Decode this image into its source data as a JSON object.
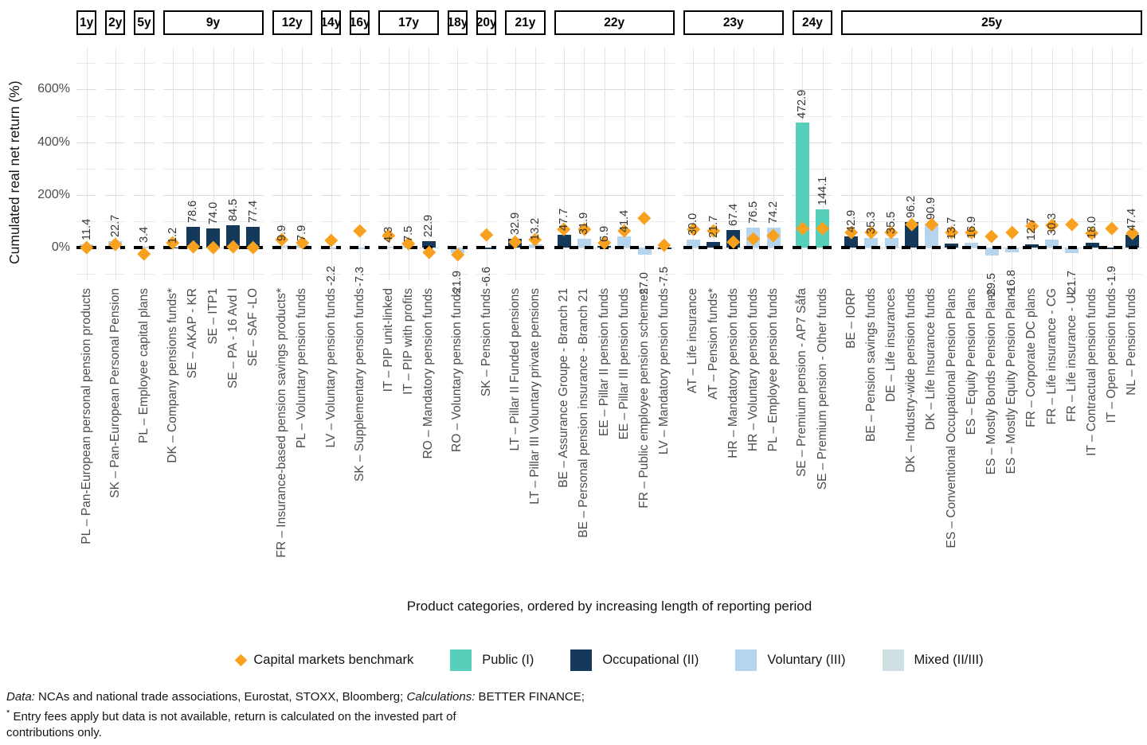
{
  "y_axis": {
    "title": "Cumulated real net return (%)",
    "ticks": [
      {
        "label": "600%",
        "value": 600
      },
      {
        "label": "400%",
        "value": 400
      },
      {
        "label": "200%",
        "value": 200
      },
      {
        "label": "0%",
        "value": 0
      }
    ]
  },
  "x_axis": {
    "title": "Product categories, ordered by increasing length of reporting period"
  },
  "legend": [
    {
      "label": "Capital markets benchmark",
      "type": "diamond",
      "color": "#F8A11E"
    },
    {
      "label": "Public (I)",
      "type": "swatch",
      "color": "#56CFBB"
    },
    {
      "label": "Occupational (II)",
      "type": "swatch",
      "color": "#15395B"
    },
    {
      "label": "Voluntary (III)",
      "type": "swatch",
      "color": "#B5D4ED"
    },
    {
      "label": "Mixed (II/III)",
      "type": "swatch",
      "color": "#CFE0E3"
    }
  ],
  "footnote": {
    "data_label": "Data:",
    "data_text": " NCAs and national trade associations, Eurostat, STOXX, Bloomberg; ",
    "calc_label": "Calculations:",
    "calc_text": " BETTER FINANCE;",
    "star": "*",
    "note_line1": " Entry fees apply but data is not available, return is calculated on the invested part of",
    "note_line2": "contributions only."
  },
  "chart_data": {
    "type": "bar",
    "title": "",
    "xlabel": "Product categories, ordered by increasing length of reporting period",
    "ylabel": "Cumulated real net return (%)",
    "ylim": [
      -120,
      760
    ],
    "yticks": [
      0,
      200,
      400,
      600
    ],
    "grid": true,
    "legend_position": "bottom",
    "colors": {
      "public": "#56CFBB",
      "occupational": "#15395B",
      "voluntary": "#B5D4ED",
      "mixed": "#CFE0E3",
      "benchmark": "#F8A11E"
    },
    "benchmark_note": "orange diamonds = Capital markets benchmark (values estimated from pixel positions, not labeled in chart)",
    "facets": [
      {
        "period": "1y",
        "items": [
          {
            "label": "PL – Pan-European personal pension products",
            "value": 11.4,
            "category": "voluntary",
            "benchmark": 1
          }
        ]
      },
      {
        "period": "2y",
        "items": [
          {
            "label": "SK – Pan-European Personal Pension",
            "value": 22.7,
            "category": "voluntary",
            "benchmark": 13
          }
        ]
      },
      {
        "period": "5y",
        "items": [
          {
            "label": "PL – Employee capital plans",
            "value": 3.4,
            "category": "voluntary",
            "benchmark": -24
          }
        ]
      },
      {
        "period": "9y",
        "items": [
          {
            "label": "DK – Company pensions funds*",
            "value": 1.2,
            "category": "occupational",
            "benchmark": 19
          },
          {
            "label": "SE – AKAP - KR",
            "value": 78.6,
            "category": "occupational",
            "benchmark": 3
          },
          {
            "label": "SE – ITP1",
            "value": 74.0,
            "category": "occupational",
            "benchmark": 1
          },
          {
            "label": "SE – PA - 16 Avd I",
            "value": 84.5,
            "category": "occupational",
            "benchmark": 5
          },
          {
            "label": "SE – SAF -LO",
            "value": 77.4,
            "category": "occupational",
            "benchmark": 2
          }
        ]
      },
      {
        "period": "12y",
        "items": [
          {
            "label": "FR – Insurance-based pension savings products*",
            "value": 9.9,
            "category": "mixed",
            "benchmark": 31
          },
          {
            "label": "PL – Voluntary pension funds",
            "value": 7.9,
            "category": "voluntary",
            "benchmark": 19
          }
        ]
      },
      {
        "period": "14y",
        "items": [
          {
            "label": "LV – Voluntary pension funds",
            "value": -2.2,
            "category": "voluntary",
            "benchmark": 27
          }
        ]
      },
      {
        "period": "16y",
        "items": [
          {
            "label": "SK – Supplementary pension funds",
            "value": -7.3,
            "category": "voluntary",
            "benchmark": 64
          }
        ]
      },
      {
        "period": "17y",
        "items": [
          {
            "label": "IT – PIP unit-linked",
            "value": 4.3,
            "category": "voluntary",
            "benchmark": 45
          },
          {
            "label": "IT – PIP with profits",
            "value": 7.5,
            "category": "voluntary",
            "benchmark": 17
          },
          {
            "label": "RO – Mandatory pension funds",
            "value": 22.9,
            "category": "occupational",
            "benchmark": -18
          }
        ]
      },
      {
        "period": "18y",
        "items": [
          {
            "label": "RO – Voluntary pension funds",
            "value": -21.9,
            "category": "voluntary",
            "benchmark": -26
          }
        ]
      },
      {
        "period": "20y",
        "items": [
          {
            "label": "SK – Pension funds",
            "value": -6.6,
            "category": "occupational",
            "benchmark": 49
          }
        ]
      },
      {
        "period": "21y",
        "items": [
          {
            "label": "LT – Pillar II Funded pensions",
            "value": 32.9,
            "category": "occupational",
            "benchmark": 22
          },
          {
            "label": "LT – Pillar III Voluntary private pensions",
            "value": 13.2,
            "category": "voluntary",
            "benchmark": 30
          }
        ]
      },
      {
        "period": "22y",
        "items": [
          {
            "label": "BE – Assurance Groupe - Branch 21",
            "value": 47.7,
            "category": "occupational",
            "benchmark": 69
          },
          {
            "label": "BE – Personal pension insurance - Branch 21",
            "value": 31.9,
            "category": "voluntary",
            "benchmark": 69
          },
          {
            "label": "EE – Pillar II pension funds",
            "value": 6.9,
            "category": "occupational",
            "benchmark": 18
          },
          {
            "label": "EE – Pillar III pension funds",
            "value": 41.4,
            "category": "voluntary",
            "benchmark": 64
          },
          {
            "label": "FR – Public employee pension schemes",
            "value": -27.0,
            "category": "voluntary",
            "benchmark": 112
          },
          {
            "label": "LV – Mandatory pension funds",
            "value": -7.5,
            "category": "occupational",
            "benchmark": 11
          }
        ]
      },
      {
        "period": "23y",
        "items": [
          {
            "label": "AT – Life insurance",
            "value": 30.0,
            "category": "voluntary",
            "benchmark": 69
          },
          {
            "label": "AT – Pension funds*",
            "value": 21.7,
            "category": "occupational",
            "benchmark": 64
          },
          {
            "label": "HR – Mandatory pension funds",
            "value": 67.4,
            "category": "occupational",
            "benchmark": 23
          },
          {
            "label": "HR – Voluntary pension funds",
            "value": 76.5,
            "category": "voluntary",
            "benchmark": 35
          },
          {
            "label": "PL – Employee pension funds",
            "value": 74.2,
            "category": "voluntary",
            "benchmark": 46
          }
        ]
      },
      {
        "period": "24y",
        "items": [
          {
            "label": "SE – Premium pension - AP7 Såfa",
            "value": 472.9,
            "category": "public",
            "benchmark": 74
          },
          {
            "label": "SE – Premium pension - Other funds",
            "value": 144.1,
            "category": "public",
            "benchmark": 74
          }
        ]
      },
      {
        "period": "25y",
        "items": [
          {
            "label": "BE – IORP",
            "value": 42.9,
            "category": "occupational",
            "benchmark": 58
          },
          {
            "label": "BE – Pension savings funds",
            "value": 35.3,
            "category": "voluntary",
            "benchmark": 58
          },
          {
            "label": "DE – Life insurances",
            "value": 35.5,
            "category": "voluntary",
            "benchmark": 58
          },
          {
            "label": "DK – Industry-wide pension funds",
            "value": 96.2,
            "category": "occupational",
            "benchmark": 87
          },
          {
            "label": "DK – Life Insurance funds",
            "value": 90.9,
            "category": "voluntary",
            "benchmark": 87
          },
          {
            "label": "ES – Conventional Occupational Pension Plans",
            "value": 13.7,
            "category": "occupational",
            "benchmark": 58
          },
          {
            "label": "ES – Equity Pension Plans",
            "value": 16.9,
            "category": "voluntary",
            "benchmark": 58
          },
          {
            "label": "ES – Mostly Bonds Pension Plans",
            "value": -29.5,
            "category": "voluntary",
            "benchmark": 44
          },
          {
            "label": "ES – Mostly Equity Pension Plans",
            "value": -16.8,
            "category": "voluntary",
            "benchmark": 58
          },
          {
            "label": "FR – Corporate DC plans",
            "value": 12.7,
            "category": "occupational",
            "benchmark": 82
          },
          {
            "label": "FR – Life insurance - CG",
            "value": 30.3,
            "category": "voluntary",
            "benchmark": 86
          },
          {
            "label": "FR – Life insurance - UL",
            "value": -21.7,
            "category": "voluntary",
            "benchmark": 88
          },
          {
            "label": "IT – Contractual pension funds",
            "value": 18.0,
            "category": "occupational",
            "benchmark": 56
          },
          {
            "label": "IT – Open pension funds",
            "value": -1.9,
            "category": "occupational",
            "benchmark": 72
          },
          {
            "label": "NL – Pension funds",
            "value": 47.4,
            "category": "occupational",
            "benchmark": 56
          }
        ]
      }
    ]
  }
}
